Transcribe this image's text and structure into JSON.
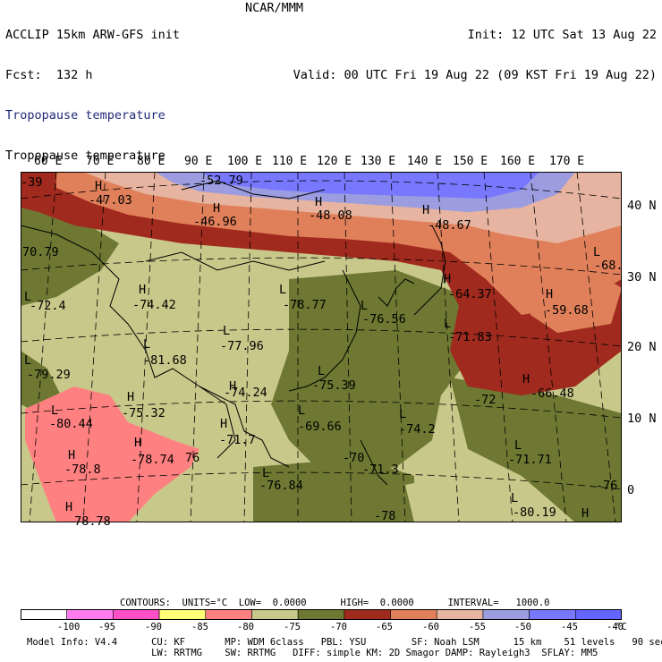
{
  "header": {
    "model_title": "ACCLIP 15km ARW-GFS init",
    "forecast": "Fcst:  132 h",
    "org": "NCAR/MMM",
    "init": "Init: 12 UTC Sat 13 Aug 22",
    "valid": "Valid: 00 UTC Fri 19 Aug 22 (09 KST Fri 19 Aug 22)",
    "field_line1": "Tropopause temperature",
    "field_line2": "Tropopause temperature"
  },
  "map": {
    "lon_labels": [
      "60 E",
      "70 E",
      "80 E",
      "90 E",
      "100 E",
      "110 E",
      "120 E",
      "130 E",
      "140 E",
      "150 E",
      "160 E",
      "170 E"
    ],
    "lat_labels": [
      "40 N",
      "30 N",
      "20 N",
      "10 N",
      "0"
    ],
    "extrema": [
      {
        "type": "H",
        "value": "-47.03"
      },
      {
        "type": "",
        "value": "-52.79"
      },
      {
        "type": "H",
        "value": "-46.96"
      },
      {
        "type": "H",
        "value": "-48.08"
      },
      {
        "type": "H",
        "value": "-48.67"
      },
      {
        "type": "",
        "value": "-39"
      },
      {
        "type": "",
        "value": "70.79"
      },
      {
        "type": "L",
        "value": "-72.4"
      },
      {
        "type": "H",
        "value": "-74.42"
      },
      {
        "type": "L",
        "value": "-78.77"
      },
      {
        "type": "L",
        "value": "-76.56"
      },
      {
        "type": "H",
        "value": "-64.37"
      },
      {
        "type": "H",
        "value": "-59.68"
      },
      {
        "type": "L",
        "value": "-68."
      },
      {
        "type": "L",
        "value": "-71.83"
      },
      {
        "type": "L",
        "value": "-77.96"
      },
      {
        "type": "L",
        "value": "-81.68"
      },
      {
        "type": "L",
        "value": "-79.29"
      },
      {
        "type": "H",
        "value": "-74.24"
      },
      {
        "type": "L",
        "value": "-75.39"
      },
      {
        "type": "",
        "value": "-72"
      },
      {
        "type": "H",
        "value": "-66.48"
      },
      {
        "type": "H",
        "value": "-75.32"
      },
      {
        "type": "L",
        "value": "-69.66"
      },
      {
        "type": "L",
        "value": "-74.2"
      },
      {
        "type": "L",
        "value": "-80.44"
      },
      {
        "type": "H",
        "value": "-71.7"
      },
      {
        "type": "H",
        "value": "-78.74"
      },
      {
        "type": "",
        "value": "76"
      },
      {
        "type": "H",
        "value": "-78.8"
      },
      {
        "type": "",
        "value": "-70"
      },
      {
        "type": "",
        "value": "-71.3"
      },
      {
        "type": "L",
        "value": "-71.71"
      },
      {
        "type": "L",
        "value": "-76.84"
      },
      {
        "type": "L",
        "value": "-78"
      },
      {
        "type": "L",
        "value": "-80.19"
      },
      {
        "type": "H",
        "value": "-78.78"
      },
      {
        "type": "",
        "value": "-76"
      },
      {
        "type": "H",
        "value": ""
      }
    ]
  },
  "legend": {
    "contours_line": "CONTOURS:  UNITS=°C  LOW=  0.0000      HIGH=  0.0000      INTERVAL=   1000.0",
    "tick_labels": [
      "-100",
      "-95",
      "-90",
      "-85",
      "-80",
      "-75",
      "-70",
      "-65",
      "-60",
      "-55",
      "-50",
      "-45",
      "-40"
    ],
    "unit": "°C",
    "colors": [
      "#ffffff",
      "#ff7cf0",
      "#ff50c8",
      "#ffff78",
      "#ff8080",
      "#c8c88a",
      "#6e7832",
      "#a02a1e",
      "#e0805a",
      "#e6b4a0",
      "#9c9ce0",
      "#7878ff",
      "#6464ff"
    ]
  },
  "footer": {
    "line1": "Model Info: V4.4      CU: KF       MP: WDM 6class   PBL: YSU        SF: Noah LSM      15 km    51 levels   90 sec",
    "line2": "                      LW: RRTMG    SW: RRTMG   DIFF: simple KM: 2D Smagor DAMP: Rayleigh3  SFLAY: MM5"
  }
}
